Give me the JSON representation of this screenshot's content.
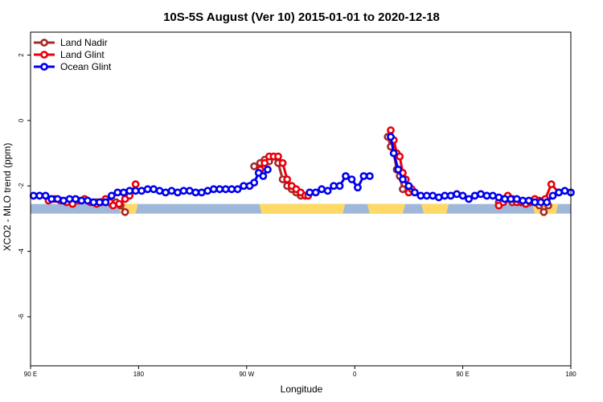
{
  "chart_data": {
    "type": "line",
    "title": "10S-5S August (Ver 10)   2015-01-01 to 2020-12-18",
    "xlabel": "Longitude",
    "ylabel": "XCO2 - MLO trend (ppm)",
    "xlim": [
      -90,
      270
    ],
    "ylim": [
      -7.5,
      2.7
    ],
    "x_ticks": [
      {
        "value": -90,
        "label": "90 E"
      },
      {
        "value": -18,
        "label": "180"
      },
      {
        "value": 54,
        "label": "90 W"
      },
      {
        "value": 126,
        "label": "0"
      },
      {
        "value": 198,
        "label": "90 E"
      },
      {
        "value": 270,
        "label": "180"
      }
    ],
    "y_ticks": [
      2,
      0,
      -2,
      -4,
      -6
    ],
    "legend_position": "top-left",
    "band": {
      "y": -2.7,
      "land_color": "#ffd966",
      "ocean_color": "#9fb8d9",
      "land_ranges": [
        [
          -30,
          -20
        ],
        [
          64,
          101
        ],
        [
          101,
          118
        ],
        [
          136,
          158
        ],
        [
          172,
          187
        ],
        [
          246,
          260
        ]
      ]
    },
    "series": [
      {
        "name": "Land Nadir",
        "color": "#a52a2a",
        "x": [
          -46,
          -43,
          -40,
          -36,
          -33,
          -30,
          -27,
          59,
          63,
          66,
          69,
          72,
          75,
          78,
          81,
          84,
          87,
          90,
          148,
          150,
          152,
          154,
          156,
          158,
          222,
          225,
          228,
          231,
          234,
          237,
          240,
          243,
          246,
          249,
          252,
          255
        ],
        "y": [
          -2.5,
          -2.5,
          -2.5,
          -2.55,
          -2.5,
          -2.6,
          -2.8,
          -1.4,
          -1.3,
          -1.2,
          -1.25,
          -1.1,
          -1.3,
          -1.8,
          -2.0,
          -2.1,
          -2.2,
          -2.3,
          -0.5,
          -0.8,
          -1.0,
          -1.5,
          -1.7,
          -2.1,
          -2.5,
          -2.4,
          -2.4,
          -2.5,
          -2.45,
          -2.5,
          -2.55,
          -2.5,
          -2.5,
          -2.6,
          -2.8,
          -2.6
        ]
      },
      {
        "name": "Land Glint",
        "color": "#e8000b",
        "x": [
          -78,
          -74,
          -70,
          -66,
          -62,
          -58,
          -54,
          -50,
          -46,
          -43,
          -40,
          -37,
          -35,
          -31,
          -27,
          -24,
          -20,
          63,
          66,
          69,
          72,
          75,
          78,
          81,
          84,
          87,
          90,
          93,
          95,
          150,
          152,
          154,
          156,
          158,
          160,
          162,
          164,
          222,
          225,
          228,
          231,
          234,
          237,
          240,
          243,
          246,
          249,
          253,
          257,
          262
        ],
        "y": [
          -2.45,
          -2.4,
          -2.45,
          -2.5,
          -2.55,
          -2.45,
          -2.4,
          -2.5,
          -2.55,
          -2.5,
          -2.4,
          -2.5,
          -2.6,
          -2.55,
          -2.4,
          -2.3,
          -1.95,
          -1.5,
          -1.3,
          -1.1,
          -1.1,
          -1.1,
          -1.3,
          -1.8,
          -2.0,
          -2.1,
          -2.2,
          -2.3,
          -2.3,
          -0.3,
          -0.6,
          -1.0,
          -1.1,
          -1.6,
          -1.8,
          -2.2,
          -2.1,
          -2.6,
          -2.5,
          -2.3,
          -2.4,
          -2.5,
          -2.5,
          -2.55,
          -2.5,
          -2.4,
          -2.45,
          -2.4,
          -1.95,
          -2.2
        ]
      },
      {
        "name": "Ocean Glint",
        "color": "#0000ee",
        "x": [
          -88,
          -84,
          -80,
          -76,
          -72,
          -68,
          -64,
          -60,
          -56,
          -52,
          -48,
          -44,
          -40,
          -36,
          -32,
          -28,
          -24,
          -20,
          -16,
          -12,
          -8,
          -4,
          0,
          4,
          8,
          12,
          16,
          20,
          24,
          28,
          32,
          36,
          40,
          44,
          48,
          52,
          56,
          59,
          62,
          65,
          68,
          96,
          100,
          104,
          108,
          112,
          116,
          120,
          124,
          128,
          132,
          136,
          150,
          152,
          155,
          158,
          162,
          166,
          170,
          174,
          178,
          182,
          186,
          190,
          194,
          198,
          202,
          206,
          210,
          214,
          218,
          222,
          226,
          230,
          234,
          238,
          242,
          246,
          250,
          254,
          258,
          262,
          266,
          270
        ],
        "y": [
          -2.3,
          -2.3,
          -2.3,
          -2.4,
          -2.4,
          -2.45,
          -2.4,
          -2.4,
          -2.45,
          -2.45,
          -2.5,
          -2.5,
          -2.5,
          -2.3,
          -2.2,
          -2.2,
          -2.15,
          -2.15,
          -2.15,
          -2.1,
          -2.1,
          -2.15,
          -2.2,
          -2.15,
          -2.2,
          -2.15,
          -2.15,
          -2.2,
          -2.2,
          -2.15,
          -2.1,
          -2.1,
          -2.1,
          -2.1,
          -2.1,
          -2.0,
          -2.0,
          -1.9,
          -1.6,
          -1.7,
          -1.5,
          -2.2,
          -2.2,
          -2.1,
          -2.15,
          -2.0,
          -2.0,
          -1.7,
          -1.8,
          -2.05,
          -1.7,
          -1.7,
          -0.5,
          -1.0,
          -1.5,
          -1.8,
          -2.0,
          -2.2,
          -2.3,
          -2.3,
          -2.3,
          -2.35,
          -2.3,
          -2.3,
          -2.25,
          -2.3,
          -2.4,
          -2.3,
          -2.25,
          -2.3,
          -2.3,
          -2.35,
          -2.4,
          -2.4,
          -2.4,
          -2.45,
          -2.45,
          -2.5,
          -2.5,
          -2.5,
          -2.3,
          -2.2,
          -2.15,
          -2.2
        ]
      }
    ]
  }
}
